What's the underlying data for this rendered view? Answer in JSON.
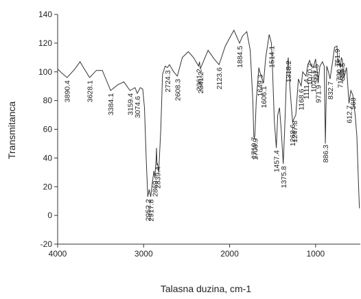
{
  "chart_data": {
    "type": "line",
    "y_label": "Transmitanca",
    "x_label": "Talasna duzina, cm-1",
    "x": [
      4000,
      3950,
      3890,
      3800,
      3740,
      3700,
      3628,
      3550,
      3480,
      3384,
      3300,
      3230,
      3159,
      3100,
      3074,
      3040,
      3010,
      2990,
      2970,
      2952,
      2935,
      2918,
      2900,
      2880,
      2869,
      2855,
      2850,
      2845,
      2839,
      2825,
      2800,
      2780,
      2750,
      2724,
      2700,
      2650,
      2608,
      2550,
      2480,
      2420,
      2361,
      2350,
      2341,
      2250,
      2180,
      2123,
      2050,
      1950,
      1884,
      1850,
      1800,
      1760,
      1730,
      1719,
      1712,
      1706,
      1690,
      1660,
      1649,
      1630,
      1606,
      1580,
      1540,
      1514,
      1500,
      1480,
      1457,
      1440,
      1420,
      1400,
      1376,
      1360,
      1340,
      1318,
      1300,
      1268,
      1247,
      1230,
      1200,
      1168,
      1150,
      1111,
      1090,
      1070,
      1050,
      1027,
      1000,
      997,
      980,
      971,
      950,
      920,
      900,
      886,
      870,
      850,
      832,
      800,
      780,
      751,
      740,
      730,
      713,
      700,
      689,
      670,
      640,
      612,
      590,
      568,
      540,
      520,
      500,
      490
    ],
    "series": [
      {
        "color": "#333333",
        "values": [
          102,
          99,
          96,
          102,
          107,
          103,
          96,
          101,
          101,
          87,
          91,
          93,
          87,
          89,
          85,
          89,
          88,
          75,
          40,
          13,
          18,
          13,
          22,
          31,
          26,
          40,
          47,
          35,
          36,
          30,
          60,
          98,
          104,
          103,
          105,
          100,
          97,
          110,
          114,
          110,
          104,
          107,
          102,
          115,
          109,
          105,
          118,
          129,
          120,
          125,
          128,
          115,
          80,
          55,
          54,
          56,
          80,
          103,
          100,
          97,
          92,
          110,
          126,
          120,
          100,
          66,
          47,
          70,
          75,
          60,
          36,
          60,
          95,
          110,
          90,
          65,
          68,
          70,
          95,
          90,
          100,
          97,
          105,
          108,
          104,
          103,
          109,
          107,
          100,
          92,
          104,
          107,
          104,
          50,
          104,
          100,
          95,
          108,
          117,
          118,
          106,
          108,
          103,
          110,
          108,
          96,
          103,
          78,
          87,
          84,
          70,
          55,
          20,
          5
        ]
      }
    ],
    "peaks": [
      3890.4,
      3628.1,
      3384.1,
      3159.4,
      3074.6,
      2952.2,
      2917.8,
      2869.0,
      2839.4,
      2724.3,
      2608.3,
      2361.2,
      2341.2,
      2123.6,
      1884.5,
      1719.7,
      1706.9,
      1649.3,
      1606.1,
      1514.1,
      1457.4,
      1375.8,
      1318.2,
      1268.6,
      1247.8,
      1168.6,
      1111.4,
      1070.2,
      1027.1,
      997.5,
      971.9,
      886.3,
      832.7,
      751.9,
      730.3,
      713.5,
      689.5,
      612.7,
      568.0
    ],
    "xlim": [
      4000,
      480
    ],
    "xticks": [
      4000,
      3000,
      2000,
      1000
    ],
    "ylim": [
      -20,
      140
    ],
    "yticks": [
      -20,
      0,
      20,
      40,
      60,
      80,
      100,
      120,
      140
    ]
  }
}
